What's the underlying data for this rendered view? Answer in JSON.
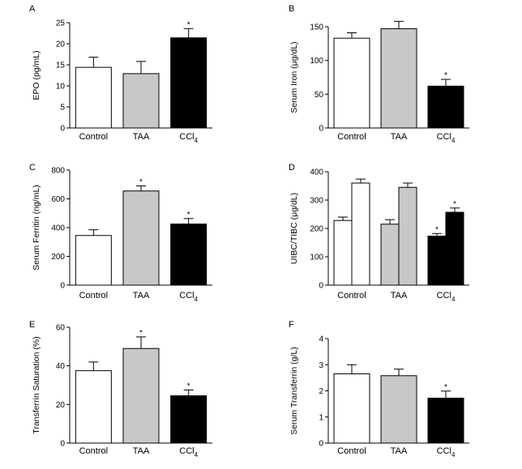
{
  "chart_data": [
    {
      "type": "bar",
      "letter": "A",
      "ylabel": "EPO (pg/mL)",
      "ylim": [
        0,
        25
      ],
      "yticks": [
        0,
        5,
        10,
        15,
        20,
        25
      ],
      "categories": [
        "Control",
        "TAA",
        "CCl4"
      ],
      "series": [
        {
          "values": [
            14.4,
            12.9,
            21.4
          ],
          "errors": [
            2.4,
            2.9,
            2.2
          ],
          "colors": [
            "#ffffff",
            "#c8c8c8",
            "#000000"
          ],
          "sig": [
            false,
            false,
            true
          ]
        }
      ]
    },
    {
      "type": "bar",
      "letter": "B",
      "ylabel": "Serum Iron (μg/dL)",
      "ylim": [
        0,
        150
      ],
      "yticks": [
        0,
        50,
        100,
        150
      ],
      "categories": [
        "Control",
        "TAA",
        "CCl4"
      ],
      "series": [
        {
          "values": [
            133,
            147,
            62
          ],
          "errors": [
            8,
            11,
            10
          ],
          "colors": [
            "#ffffff",
            "#c8c8c8",
            "#000000"
          ],
          "sig": [
            false,
            false,
            true
          ]
        }
      ]
    },
    {
      "type": "bar",
      "letter": "C",
      "ylabel": "Serum Ferritin (ng/mL)",
      "ylim": [
        0,
        800
      ],
      "yticks": [
        0,
        200,
        400,
        600,
        800
      ],
      "categories": [
        "Control",
        "TAA",
        "CCl4"
      ],
      "series": [
        {
          "values": [
            345,
            655,
            425
          ],
          "errors": [
            40,
            35,
            38
          ],
          "colors": [
            "#ffffff",
            "#c8c8c8",
            "#000000"
          ],
          "sig": [
            false,
            true,
            true
          ]
        }
      ]
    },
    {
      "type": "bar",
      "letter": "D",
      "ylabel": "UIBC/TIBC (μg/dL)",
      "ylim": [
        0,
        400
      ],
      "yticks": [
        0,
        100,
        200,
        300,
        400
      ],
      "categories": [
        "Control",
        "TAA",
        "CCl4"
      ],
      "series": [
        {
          "values": [
            228,
            215,
            173
          ],
          "errors": [
            12,
            16,
            9
          ],
          "colors": [
            "#ffffff",
            "#c8c8c8",
            "#000000"
          ],
          "sig": [
            false,
            false,
            true
          ]
        },
        {
          "values": [
            360,
            345,
            257
          ],
          "errors": [
            14,
            15,
            15
          ],
          "colors": [
            "#ffffff",
            "#c8c8c8",
            "#000000"
          ],
          "sig": [
            false,
            false,
            true
          ]
        }
      ]
    },
    {
      "type": "bar",
      "letter": "E",
      "ylabel": "Transferrin Saturation (%)",
      "ylim": [
        0,
        60
      ],
      "yticks": [
        0,
        20,
        40,
        60
      ],
      "categories": [
        "Control",
        "TAA",
        "CCl4"
      ],
      "series": [
        {
          "values": [
            37.5,
            49,
            24.5
          ],
          "errors": [
            4.5,
            6,
            3
          ],
          "colors": [
            "#ffffff",
            "#c8c8c8",
            "#000000"
          ],
          "sig": [
            false,
            true,
            true
          ]
        }
      ]
    },
    {
      "type": "bar",
      "letter": "F",
      "ylabel": "Serum Transferrin (g/L)",
      "ylim": [
        0,
        4
      ],
      "yticks": [
        0,
        1,
        2,
        3,
        4
      ],
      "categories": [
        "Control",
        "TAA",
        "CCl4"
      ],
      "series": [
        {
          "values": [
            2.65,
            2.58,
            1.72
          ],
          "errors": [
            0.35,
            0.25,
            0.27
          ],
          "colors": [
            "#ffffff",
            "#c8c8c8",
            "#000000"
          ],
          "sig": [
            false,
            false,
            true
          ]
        }
      ]
    }
  ]
}
